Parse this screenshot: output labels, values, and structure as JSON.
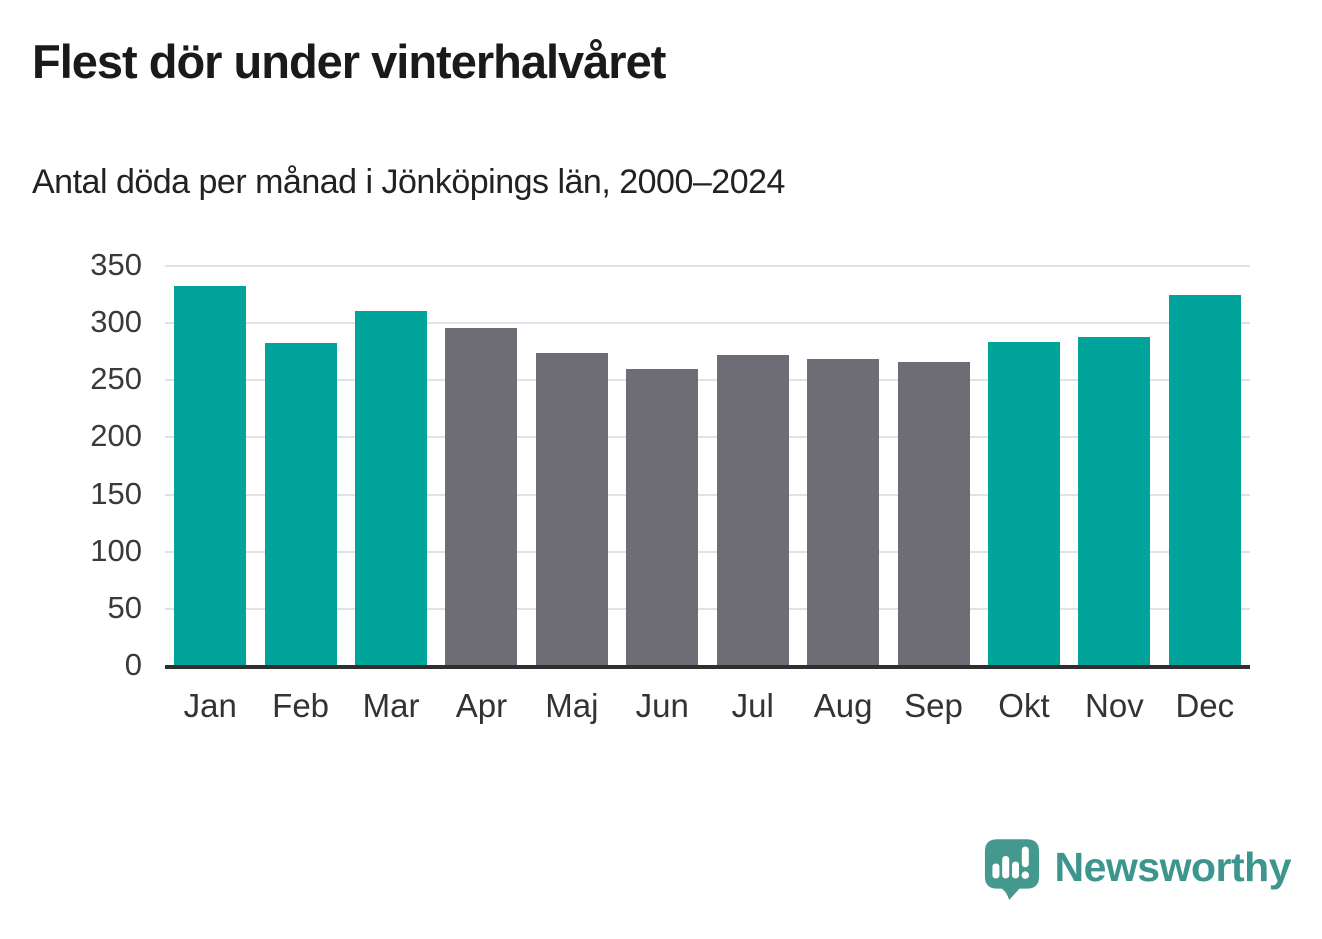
{
  "title": "Flest dör under vinterhalvåret",
  "subtitle": "Antal döda per månad i Jönköpings län, 2000–2024",
  "branding": {
    "name": "Newsworthy",
    "logo_icon": "speech-bubble-bar-chart-icon"
  },
  "colors": {
    "winter": "#00a49a",
    "summer": "#6e6d76",
    "axis": "#2f2f2f",
    "gridline": "#e2e2e4",
    "brand_teal": "#3d968e",
    "title_text": "#1a1a1a",
    "tick_text": "#3a3a3a"
  },
  "chart_data": {
    "type": "bar",
    "title": "Flest dör under vinterhalvåret",
    "subtitle": "Antal döda per månad i Jönköpings län, 2000–2024",
    "categories": [
      "Jan",
      "Feb",
      "Mar",
      "Apr",
      "Maj",
      "Jun",
      "Jul",
      "Aug",
      "Sep",
      "Okt",
      "Nov",
      "Dec"
    ],
    "values": [
      332,
      282,
      310,
      295,
      273,
      259,
      271,
      268,
      265,
      283,
      287,
      324
    ],
    "bar_colors": [
      "winter",
      "winter",
      "winter",
      "summer",
      "summer",
      "summer",
      "summer",
      "summer",
      "summer",
      "winter",
      "winter",
      "winter"
    ],
    "xlabel": "",
    "ylabel": "",
    "ylim": [
      0,
      350
    ],
    "yticks": [
      0,
      50,
      100,
      150,
      200,
      250,
      300,
      350
    ],
    "grid": true,
    "legend": "none"
  }
}
